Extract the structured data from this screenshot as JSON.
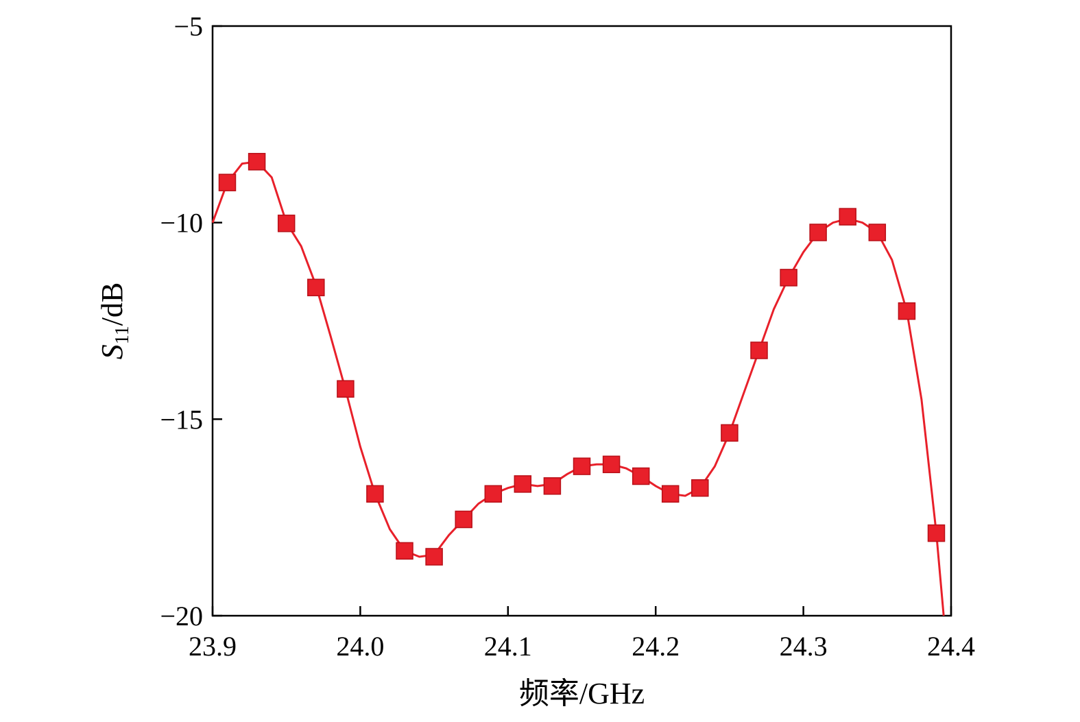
{
  "chart_data": {
    "type": "line",
    "title": "",
    "xlabel": "频率/GHz",
    "ylabel": {
      "symbol": "S",
      "subscript": "11",
      "unit": "/dB"
    },
    "xlim": [
      23.9,
      24.4
    ],
    "ylim": [
      -20,
      -5
    ],
    "xticks": [
      23.9,
      24.0,
      24.1,
      24.2,
      24.3,
      24.4
    ],
    "xtick_labels": [
      "23.9",
      "24.0",
      "24.1",
      "24.2",
      "24.3",
      "24.4"
    ],
    "yticks": [
      -5,
      -10,
      -15,
      -20
    ],
    "ytick_labels": [
      "−5",
      "−10",
      "−15",
      "−20"
    ],
    "grid": false,
    "legend": "none",
    "series": [
      {
        "color": "#e8202a",
        "marker": "square",
        "curve": {
          "x": [
            23.9,
            23.91,
            23.92,
            23.93,
            23.94,
            23.95,
            23.96,
            23.97,
            23.98,
            23.99,
            24.0,
            24.01,
            24.02,
            24.03,
            24.04,
            24.05,
            24.06,
            24.07,
            24.08,
            24.09,
            24.1,
            24.11,
            24.12,
            24.13,
            24.14,
            24.15,
            24.16,
            24.17,
            24.18,
            24.19,
            24.2,
            24.21,
            24.22,
            24.23,
            24.24,
            24.25,
            24.26,
            24.27,
            24.28,
            24.29,
            24.3,
            24.31,
            24.32,
            24.33,
            24.34,
            24.35,
            24.36,
            24.37,
            24.38,
            24.39,
            24.395
          ],
          "y": [
            -10.0,
            -8.98,
            -8.5,
            -8.45,
            -8.85,
            -10.0,
            -10.6,
            -11.6,
            -12.9,
            -14.25,
            -15.7,
            -16.9,
            -17.8,
            -18.35,
            -18.5,
            -18.45,
            -17.95,
            -17.55,
            -17.15,
            -16.9,
            -16.75,
            -16.65,
            -16.7,
            -16.65,
            -16.4,
            -16.2,
            -16.15,
            -16.15,
            -16.25,
            -16.45,
            -16.7,
            -16.9,
            -16.95,
            -16.75,
            -16.2,
            -15.35,
            -14.3,
            -13.25,
            -12.2,
            -11.4,
            -10.75,
            -10.25,
            -10.0,
            -9.9,
            -10.0,
            -10.25,
            -10.95,
            -12.25,
            -14.5,
            -17.9,
            -20.0
          ]
        },
        "markers": {
          "x": [
            23.91,
            23.93,
            23.95,
            23.97,
            23.99,
            24.01,
            24.03,
            24.05,
            24.07,
            24.09,
            24.11,
            24.13,
            24.15,
            24.17,
            24.19,
            24.21,
            24.23,
            24.25,
            24.27,
            24.29,
            24.31,
            24.33,
            24.35,
            24.37,
            24.39
          ],
          "y": [
            -8.98,
            -8.45,
            -10.02,
            -11.65,
            -14.23,
            -16.9,
            -18.35,
            -18.5,
            -17.55,
            -16.9,
            -16.65,
            -16.7,
            -16.2,
            -16.15,
            -16.45,
            -16.9,
            -16.75,
            -15.35,
            -13.25,
            -11.4,
            -10.25,
            -9.85,
            -10.25,
            -12.25,
            -17.9
          ]
        }
      }
    ]
  }
}
